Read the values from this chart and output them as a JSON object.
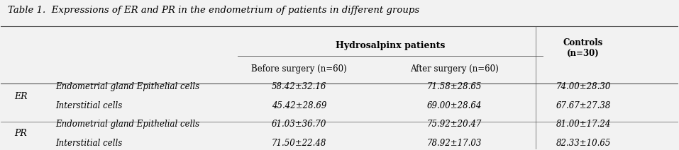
{
  "title": "Table 1.  Expressions of ER and PR in the endometrium of patients in different groups",
  "col_header_main": "Hydrosalpinx patients",
  "col_header_sub1": "Before surgery (n=60)",
  "col_header_sub2": "After surgery (n=60)",
  "col_header_right": "Controls\n(n=30)",
  "row_labels": [
    "ER",
    "",
    "PR",
    ""
  ],
  "row_sublabels": [
    "Endometrial gland Epithelial cells",
    "Interstitial cells",
    "Endometrial gland Epithelial cells",
    "Interstitial cells"
  ],
  "data": [
    [
      "58.42±32.16",
      "71.58±28.65",
      "74.00±28.30"
    ],
    [
      "45.42±28.69",
      "69.00±28.64",
      "67.67±27.38"
    ],
    [
      "61.03±36.70",
      "75.92±20.47",
      "81.00±17.24"
    ],
    [
      "71.50±22.48",
      "78.92±17.03",
      "82.33±10.65"
    ]
  ],
  "bg_color": "#f0f0f0",
  "text_color": "#333333",
  "title_color": "#000000"
}
